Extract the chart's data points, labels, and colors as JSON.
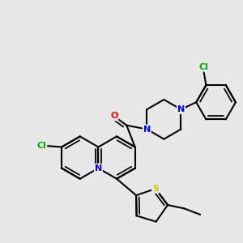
{
  "bg_color": "#e8e8e8",
  "bond_color": "#000000",
  "bond_width": 1.5,
  "atom_colors": {
    "N": "#0000ff",
    "O": "#ff0000",
    "S": "#cccc00",
    "Cl": "#00aa00",
    "C": "#000000"
  },
  "font_size": 8.0
}
